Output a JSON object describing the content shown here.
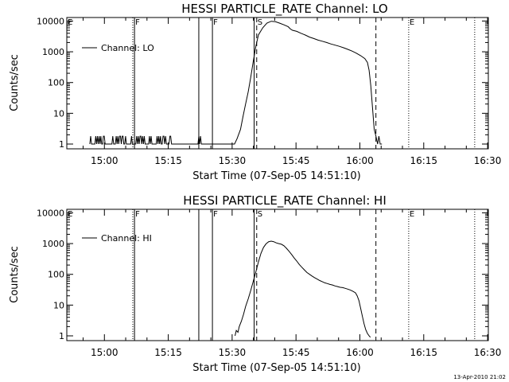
{
  "colors": {
    "background": "#ffffff",
    "foreground": "#000000"
  },
  "footer": {
    "timestamp": "13-Apr-2010 21:02"
  },
  "chart_data": [
    {
      "type": "line",
      "title": "HESSI PARTICLE_RATE Channel: LO",
      "xlabel": "Start Time (07-Sep-05 14:51:10)",
      "ylabel": "Counts/sec",
      "y_scale": "log",
      "xlim_minutes_after_start": [
        0,
        99
      ],
      "ylim": [
        0.7,
        13000
      ],
      "x_ticks": [
        {
          "label": "15:00",
          "minute": 8.83
        },
        {
          "label": "15:15",
          "minute": 23.83
        },
        {
          "label": "15:30",
          "minute": 38.83
        },
        {
          "label": "15:45",
          "minute": 53.83
        },
        {
          "label": "16:00",
          "minute": 68.83
        },
        {
          "label": "16:15",
          "minute": 83.83
        },
        {
          "label": "16:30",
          "minute": 98.83
        }
      ],
      "y_ticks": [
        {
          "label": "1",
          "value": 1
        },
        {
          "label": "10",
          "value": 10
        },
        {
          "label": "100",
          "value": 100
        },
        {
          "label": "1000",
          "value": 1000
        },
        {
          "label": "10000",
          "value": 10000
        }
      ],
      "legend": {
        "position": "top-left",
        "entry": "Channel: LO"
      },
      "markers": [
        {
          "label": "E",
          "minute": 0,
          "style": "dotted"
        },
        {
          "label": "",
          "minute": 15.5,
          "style": "dotted"
        },
        {
          "label": "F",
          "minute": 15.9,
          "style": "solid"
        },
        {
          "label": "",
          "minute": 31.0,
          "style": "solid"
        },
        {
          "label": "F",
          "minute": 34.2,
          "style": "solid"
        },
        {
          "label": "",
          "minute": 44.0,
          "style": "solid"
        },
        {
          "label": "S",
          "minute": 44.6,
          "style": "dashed"
        },
        {
          "label": "",
          "minute": 72.6,
          "style": "dashed"
        },
        {
          "label": "E",
          "minute": 80.3,
          "style": "dotted"
        },
        {
          "label": "",
          "minute": 95.8,
          "style": "dotted"
        }
      ],
      "series": [
        {
          "x": [
            5.4,
            5.6,
            5.8,
            6.0,
            6.2,
            6.6,
            6.8,
            7.0,
            7.2,
            7.4,
            7.6,
            7.8,
            8.0,
            8.2,
            8.4,
            8.6,
            8.8,
            9.0,
            9.2,
            10.6,
            10.8,
            11.0,
            11.2,
            11.4,
            11.6,
            11.8,
            12.0,
            12.2,
            12.4,
            12.6,
            12.8,
            13.0,
            13.2,
            13.4,
            13.6,
            13.8,
            14.0,
            14.2,
            15.0,
            15.2,
            15.4,
            15.6,
            15.8,
            16.2,
            16.4,
            16.6,
            16.8,
            17.0,
            17.2,
            17.4,
            17.6,
            17.8,
            18.0,
            18.2,
            18.4,
            19.2,
            19.4,
            19.6,
            19.8,
            20.0,
            20.2,
            21.0,
            21.2,
            21.4,
            21.6,
            21.8,
            22.0,
            22.2,
            22.4,
            22.6,
            22.8,
            23.0,
            23.2,
            23.4,
            24.0,
            24.2,
            24.4,
            24.6,
            24.8,
            30.8,
            31.0,
            31.2,
            31.4,
            31.6,
            39.4,
            40.0,
            40.8,
            41.4,
            42.0,
            42.6,
            43.2,
            43.8,
            44.4,
            45.0,
            46.0,
            47.0,
            48.0,
            49.0,
            50.0,
            51.0,
            52.0,
            52.5,
            53.0,
            54.0,
            55.0,
            56.0,
            57.0,
            58.0,
            59.0,
            60.0,
            61.0,
            62.0,
            63.0,
            64.0,
            65.0,
            66.0,
            67.0,
            68.0,
            69.0,
            70.0,
            70.6,
            71.0,
            71.4,
            71.8,
            72.2,
            72.6,
            73.0,
            73.3,
            73.6,
            74.0
          ],
          "values": [
            1,
            1.8,
            1,
            1,
            1,
            1,
            1.8,
            1,
            1.8,
            1,
            1.8,
            1,
            1.8,
            1,
            1,
            1.8,
            1.8,
            1,
            1,
            1,
            1.8,
            1,
            1,
            1,
            1.8,
            1,
            1.8,
            1,
            1.8,
            1.8,
            1,
            1.8,
            1.8,
            1,
            1,
            1.8,
            1,
            1,
            1,
            1.8,
            1,
            1,
            1,
            1,
            1.8,
            1,
            1.8,
            1,
            1.8,
            1.8,
            1,
            1.8,
            1,
            1.8,
            1,
            1,
            1.8,
            1,
            1.8,
            1,
            1,
            1,
            1.8,
            1,
            1.8,
            1,
            1.8,
            1,
            1,
            1.8,
            1.8,
            1,
            1.8,
            1,
            1,
            1.8,
            1.8,
            1,
            1,
            1,
            1.8,
            1,
            1.8,
            1,
            1,
            1.5,
            3,
            8,
            20,
            50,
            150,
            500,
            1500,
            3500,
            6000,
            8500,
            9800,
            9500,
            8500,
            7500,
            6500,
            5500,
            5000,
            4600,
            4000,
            3500,
            3000,
            2700,
            2400,
            2200,
            2000,
            1800,
            1650,
            1500,
            1350,
            1200,
            1050,
            900,
            750,
            600,
            450,
            250,
            80,
            15,
            3,
            1.8,
            1,
            1.8,
            1,
            1
          ]
        }
      ]
    },
    {
      "type": "line",
      "title": "HESSI PARTICLE_RATE Channel: HI",
      "xlabel": "Start Time (07-Sep-05 14:51:10)",
      "ylabel": "Counts/sec",
      "y_scale": "log",
      "xlim_minutes_after_start": [
        0,
        99
      ],
      "ylim": [
        0.7,
        13000
      ],
      "x_ticks": [
        {
          "label": "15:00",
          "minute": 8.83
        },
        {
          "label": "15:15",
          "minute": 23.83
        },
        {
          "label": "15:30",
          "minute": 38.83
        },
        {
          "label": "15:45",
          "minute": 53.83
        },
        {
          "label": "16:00",
          "minute": 68.83
        },
        {
          "label": "16:15",
          "minute": 83.83
        },
        {
          "label": "16:30",
          "minute": 98.83
        }
      ],
      "y_ticks": [
        {
          "label": "1",
          "value": 1
        },
        {
          "label": "10",
          "value": 10
        },
        {
          "label": "100",
          "value": 100
        },
        {
          "label": "1000",
          "value": 1000
        },
        {
          "label": "10000",
          "value": 10000
        }
      ],
      "legend": {
        "position": "top-left",
        "entry": "Channel: HI"
      },
      "markers": [
        {
          "label": "E",
          "minute": 0,
          "style": "dotted"
        },
        {
          "label": "",
          "minute": 15.5,
          "style": "dotted"
        },
        {
          "label": "F",
          "minute": 15.9,
          "style": "solid"
        },
        {
          "label": "",
          "minute": 31.0,
          "style": "solid"
        },
        {
          "label": "F",
          "minute": 34.2,
          "style": "solid"
        },
        {
          "label": "",
          "minute": 44.0,
          "style": "solid"
        },
        {
          "label": "S",
          "minute": 44.6,
          "style": "dashed"
        },
        {
          "label": "",
          "minute": 72.6,
          "style": "dashed"
        },
        {
          "label": "E",
          "minute": 80.3,
          "style": "dotted"
        },
        {
          "label": "",
          "minute": 95.8,
          "style": "dotted"
        }
      ],
      "series": [
        {
          "x": [
            39.5,
            39.8,
            40.2,
            40.5,
            41.0,
            41.5,
            42.0,
            42.6,
            43.2,
            43.8,
            44.4,
            45.0,
            45.6,
            46.2,
            46.8,
            47.4,
            48.0,
            48.6,
            49.2,
            49.8,
            50.4,
            51.0,
            51.6,
            52.2,
            52.8,
            53.4,
            54.0,
            54.6,
            55.2,
            55.8,
            56.4,
            57.0,
            57.6,
            58.2,
            58.8,
            59.4,
            60.0,
            60.6,
            61.2,
            61.8,
            62.4,
            63.0,
            63.6,
            64.2,
            64.8,
            65.4,
            66.0,
            66.6,
            67.2,
            67.8,
            68.2,
            68.6,
            69.0,
            69.4,
            69.8,
            70.2,
            70.6,
            71.0,
            71.3
          ],
          "values": [
            1,
            1.5,
            1.3,
            2,
            3,
            5,
            9,
            16,
            30,
            60,
            120,
            250,
            480,
            750,
            980,
            1150,
            1200,
            1150,
            1050,
            1000,
            950,
            850,
            700,
            560,
            440,
            340,
            270,
            210,
            170,
            140,
            115,
            100,
            88,
            78,
            70,
            63,
            58,
            53,
            50,
            47,
            45,
            42,
            40,
            38,
            37,
            35,
            33,
            31,
            28,
            25,
            20,
            14,
            8,
            4.5,
            2.5,
            1.6,
            1.2,
            1,
            0.9
          ]
        }
      ]
    }
  ]
}
